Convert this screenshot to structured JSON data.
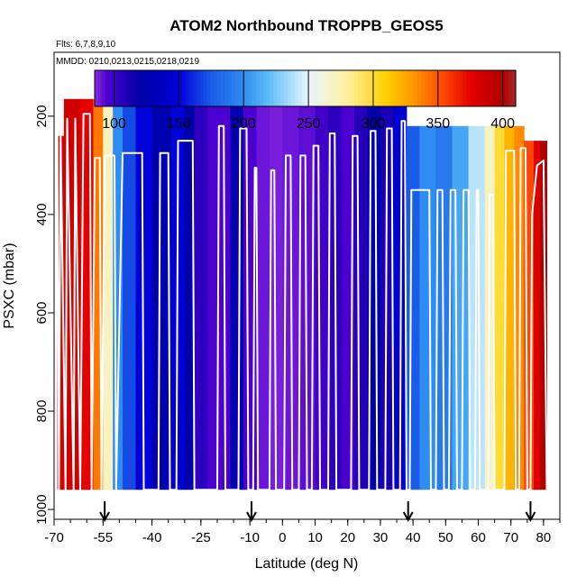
{
  "chart_data": {
    "type": "heatmap",
    "title": "ATOM2 Northbound TROPPB_GEOS5",
    "flights_note": "Flts: 6,7,8,9,10",
    "dates_note": "MMDD: 0210,0213,0215,0218,0219",
    "xlabel": "Latitude (deg N)",
    "ylabel": "PSXC (mbar)",
    "xlim": [
      -70,
      85
    ],
    "ylim": [
      1020,
      70
    ],
    "y_reversed": true,
    "x_ticks": [
      -70,
      -55,
      -40,
      -25,
      -10,
      0,
      10,
      20,
      30,
      40,
      50,
      60,
      70,
      80
    ],
    "x_minor_step": 5,
    "y_ticks": [
      200,
      400,
      600,
      800,
      1000
    ],
    "colorbar": {
      "range": [
        85,
        410
      ],
      "ticks": [
        100,
        150,
        200,
        250,
        300,
        350,
        400
      ],
      "colors": [
        "#8b2be2",
        "#4b00d0",
        "#0000a8",
        "#0000d8",
        "#1a5ce8",
        "#2f8cf2",
        "#5fc0f6",
        "#e8f5ff",
        "#fff0a0",
        "#ffd000",
        "#ff9a00",
        "#ff4500",
        "#e60000",
        "#b00000",
        "#a52a2a"
      ],
      "color_stops": [
        85,
        95,
        120,
        150,
        175,
        200,
        220,
        250,
        280,
        310,
        330,
        355,
        375,
        400,
        410
      ]
    },
    "columns": [
      {
        "lat": [
          -69,
          -67
        ],
        "value": 380,
        "top": 240
      },
      {
        "lat": [
          -67,
          -62
        ],
        "value": 385,
        "top": 165
      },
      {
        "lat": [
          -62,
          -58
        ],
        "value": 375,
        "top": 165
      },
      {
        "lat": [
          -58,
          -55
        ],
        "value": 340,
        "top": 165
      },
      {
        "lat": [
          -55,
          -52
        ],
        "value": 270,
        "top": 165
      },
      {
        "lat": [
          -52,
          -49
        ],
        "value": 200,
        "top": 165
      },
      {
        "lat": [
          -49,
          -45
        ],
        "value": 170,
        "top": 165
      },
      {
        "lat": [
          -45,
          -40
        ],
        "value": 150,
        "top": 165
      },
      {
        "lat": [
          -40,
          -34
        ],
        "value": 125,
        "top": 165
      },
      {
        "lat": [
          -34,
          -30
        ],
        "value": 150,
        "top": 165
      },
      {
        "lat": [
          -30,
          -27
        ],
        "value": 120,
        "top": 165
      },
      {
        "lat": [
          -27,
          -23
        ],
        "value": 105,
        "top": 165
      },
      {
        "lat": [
          -23,
          -16
        ],
        "value": 95,
        "top": 165
      },
      {
        "lat": [
          -16,
          -12
        ],
        "value": 125,
        "top": 165
      },
      {
        "lat": [
          -12,
          -8
        ],
        "value": 95,
        "top": 165
      },
      {
        "lat": [
          -8,
          -4
        ],
        "value": 90,
        "top": 165
      },
      {
        "lat": [
          -4,
          0
        ],
        "value": 88,
        "top": 165
      },
      {
        "lat": [
          0,
          5
        ],
        "value": 90,
        "top": 165
      },
      {
        "lat": [
          5,
          10
        ],
        "value": 92,
        "top": 165
      },
      {
        "lat": [
          10,
          14
        ],
        "value": 98,
        "top": 165
      },
      {
        "lat": [
          14,
          18
        ],
        "value": 105,
        "top": 165
      },
      {
        "lat": [
          18,
          22
        ],
        "value": 95,
        "top": 165
      },
      {
        "lat": [
          22,
          26
        ],
        "value": 108,
        "top": 165
      },
      {
        "lat": [
          26,
          30
        ],
        "value": 120,
        "top": 165
      },
      {
        "lat": [
          30,
          34
        ],
        "value": 112,
        "top": 165
      },
      {
        "lat": [
          34,
          38
        ],
        "value": 145,
        "top": 165
      },
      {
        "lat": [
          38,
          42
        ],
        "value": 175,
        "top": 220
      },
      {
        "lat": [
          42,
          47
        ],
        "value": 200,
        "top": 220
      },
      {
        "lat": [
          47,
          52
        ],
        "value": 190,
        "top": 220
      },
      {
        "lat": [
          52,
          57
        ],
        "value": 210,
        "top": 220
      },
      {
        "lat": [
          57,
          62
        ],
        "value": 240,
        "top": 220
      },
      {
        "lat": [
          62,
          65
        ],
        "value": 270,
        "top": 220
      },
      {
        "lat": [
          65,
          68
        ],
        "value": 300,
        "top": 220
      },
      {
        "lat": [
          68,
          71
        ],
        "value": 320,
        "top": 220
      },
      {
        "lat": [
          71,
          74
        ],
        "value": 335,
        "top": 220
      },
      {
        "lat": [
          74,
          77
        ],
        "value": 355,
        "top": 250
      },
      {
        "lat": [
          77,
          79
        ],
        "value": 380,
        "top": 250
      },
      {
        "lat": [
          79,
          81
        ],
        "value": 400,
        "top": 250
      }
    ],
    "tropopause_line": [
      [
        -69,
        240
      ],
      [
        -68.5,
        960
      ],
      [
        -68,
        230
      ],
      [
        -66.5,
        960
      ],
      [
        -66,
        205
      ],
      [
        -64,
        960
      ],
      [
        -63.5,
        205
      ],
      [
        -62,
        960
      ],
      [
        -61,
        195
      ],
      [
        -59,
        195
      ],
      [
        -58.5,
        960
      ],
      [
        -57.5,
        285
      ],
      [
        -56,
        285
      ],
      [
        -55.5,
        960
      ],
      [
        -54.5,
        280
      ],
      [
        -51.5,
        280
      ],
      [
        -51,
        960
      ],
      [
        -49,
        275
      ],
      [
        -43,
        275
      ],
      [
        -42.5,
        960
      ],
      [
        -38,
        960
      ],
      [
        -37.5,
        275
      ],
      [
        -35,
        275
      ],
      [
        -34.5,
        960
      ],
      [
        -32.5,
        960
      ],
      [
        -32,
        250
      ],
      [
        -27.5,
        250
      ],
      [
        -27,
        960
      ],
      [
        -20,
        960
      ],
      [
        -19.5,
        220
      ],
      [
        -18,
        220
      ],
      [
        -17.5,
        960
      ],
      [
        -13.5,
        960
      ],
      [
        -13,
        225
      ],
      [
        -11,
        225
      ],
      [
        -10.5,
        960
      ],
      [
        -9,
        960
      ],
      [
        -8.5,
        305
      ],
      [
        -8,
        305
      ],
      [
        -7.5,
        960
      ],
      [
        -4,
        960
      ],
      [
        -3.5,
        310
      ],
      [
        -2.5,
        310
      ],
      [
        -2,
        960
      ],
      [
        0.5,
        960
      ],
      [
        1,
        280
      ],
      [
        2.5,
        280
      ],
      [
        3,
        960
      ],
      [
        5,
        960
      ],
      [
        5.5,
        280
      ],
      [
        7,
        280
      ],
      [
        7.5,
        960
      ],
      [
        9,
        960
      ],
      [
        9.5,
        260
      ],
      [
        11,
        260
      ],
      [
        11.5,
        960
      ],
      [
        14,
        960
      ],
      [
        14.5,
        235
      ],
      [
        16,
        235
      ],
      [
        16.5,
        960
      ],
      [
        21,
        960
      ],
      [
        21.5,
        240
      ],
      [
        23,
        240
      ],
      [
        23.5,
        960
      ],
      [
        26.5,
        960
      ],
      [
        27,
        230
      ],
      [
        28.5,
        230
      ],
      [
        29,
        960
      ],
      [
        31.5,
        960
      ],
      [
        32,
        225
      ],
      [
        33.5,
        225
      ],
      [
        34,
        960
      ],
      [
        36,
        960
      ],
      [
        36.5,
        210
      ],
      [
        37.5,
        210
      ],
      [
        38,
        960
      ],
      [
        39,
        960
      ],
      [
        39.5,
        350
      ],
      [
        45,
        350
      ],
      [
        45.5,
        960
      ],
      [
        47,
        960
      ],
      [
        47.5,
        350
      ],
      [
        49,
        350
      ],
      [
        49.5,
        960
      ],
      [
        51,
        960
      ],
      [
        51.5,
        350
      ],
      [
        53,
        350
      ],
      [
        53.5,
        960
      ],
      [
        55,
        960
      ],
      [
        55.5,
        350
      ],
      [
        57,
        350
      ],
      [
        57.5,
        960
      ],
      [
        59,
        960
      ],
      [
        59.5,
        350
      ],
      [
        60,
        350
      ],
      [
        60.5,
        960
      ],
      [
        63,
        960
      ],
      [
        63.5,
        360
      ],
      [
        64.5,
        360
      ],
      [
        65,
        960
      ],
      [
        68,
        960
      ],
      [
        68.5,
        270
      ],
      [
        71,
        270
      ],
      [
        71.5,
        960
      ],
      [
        72.5,
        960
      ],
      [
        73,
        265
      ],
      [
        74.5,
        265
      ],
      [
        75,
        960
      ],
      [
        76,
        960
      ],
      [
        76.5,
        400
      ],
      [
        78,
        300
      ],
      [
        80,
        290
      ],
      [
        81,
        960
      ]
    ],
    "arrows_lat": [
      -54.5,
      -9.5,
      38.5,
      76
    ]
  }
}
